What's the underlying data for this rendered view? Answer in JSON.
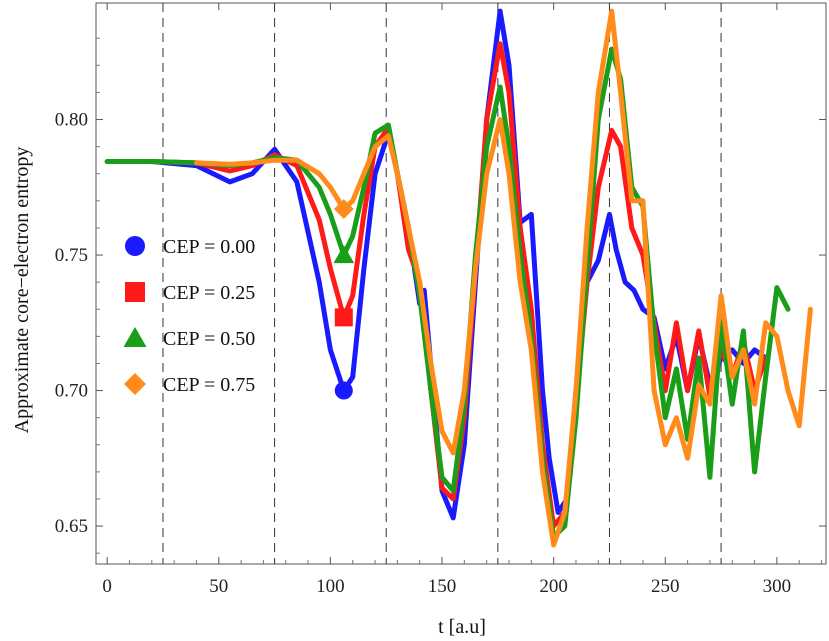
{
  "chart_data": {
    "type": "line",
    "xlabel": "t  [a.u]",
    "ylabel": "Approximate   core−electron   entropy",
    "xlim": [
      -5,
      322
    ],
    "ylim": [
      0.636,
      0.843
    ],
    "x_ticks": [
      0,
      50,
      100,
      150,
      200,
      250,
      300
    ],
    "y_ticks": [
      0.65,
      0.7,
      0.75,
      0.8
    ],
    "y_tick_labels": [
      "0.65",
      "0.70",
      "0.75",
      "0.80"
    ],
    "vlines": [
      25,
      75,
      125,
      175,
      225,
      275
    ],
    "legend_position": "left",
    "series": [
      {
        "name": "CEP = 0.00",
        "color": "#1a1aff",
        "marker": "circle",
        "marker_point": [
          106,
          0.7
        ],
        "x": [
          0,
          20,
          40,
          55,
          65,
          75,
          85,
          95,
          100,
          106,
          110,
          115,
          120,
          126,
          130,
          135,
          140,
          142,
          146,
          150,
          155,
          160,
          165,
          170,
          176,
          180,
          185,
          190,
          195,
          198,
          202,
          206,
          210,
          215,
          220,
          225,
          228,
          232,
          236,
          240,
          245,
          250,
          255,
          260,
          265,
          270,
          275,
          280,
          285,
          290,
          295
        ],
        "y": [
          0.7845,
          0.7845,
          0.783,
          0.777,
          0.78,
          0.789,
          0.777,
          0.74,
          0.715,
          0.7,
          0.705,
          0.745,
          0.78,
          0.795,
          0.78,
          0.76,
          0.732,
          0.737,
          0.7,
          0.663,
          0.653,
          0.68,
          0.74,
          0.8,
          0.84,
          0.82,
          0.762,
          0.765,
          0.7,
          0.675,
          0.655,
          0.66,
          0.7,
          0.74,
          0.748,
          0.765,
          0.752,
          0.74,
          0.737,
          0.73,
          0.727,
          0.708,
          0.72,
          0.7,
          0.72,
          0.702,
          0.712,
          0.715,
          0.71,
          0.715,
          0.712
        ]
      },
      {
        "name": "CEP = 0.25",
        "color": "#ff1a1a",
        "marker": "square",
        "marker_point": [
          106,
          0.727
        ],
        "x": [
          0,
          20,
          40,
          55,
          65,
          75,
          85,
          95,
          100,
          106,
          110,
          115,
          120,
          126,
          130,
          135,
          140,
          145,
          150,
          155,
          160,
          165,
          170,
          176,
          180,
          185,
          190,
          195,
          200,
          205,
          210,
          215,
          220,
          226,
          230,
          235,
          240,
          245,
          250,
          255,
          260,
          265,
          270,
          275,
          280,
          285,
          290,
          295
        ],
        "y": [
          0.7845,
          0.7845,
          0.784,
          0.781,
          0.783,
          0.787,
          0.783,
          0.763,
          0.745,
          0.727,
          0.735,
          0.765,
          0.79,
          0.797,
          0.78,
          0.752,
          0.74,
          0.7,
          0.664,
          0.66,
          0.69,
          0.745,
          0.8,
          0.828,
          0.81,
          0.76,
          0.73,
          0.68,
          0.65,
          0.655,
          0.695,
          0.74,
          0.775,
          0.796,
          0.79,
          0.76,
          0.75,
          0.725,
          0.7,
          0.725,
          0.7,
          0.722,
          0.698,
          0.715,
          0.705,
          0.718,
          0.7,
          0.712
        ]
      },
      {
        "name": "CEP = 0.50",
        "color": "#1a9e1a",
        "marker": "triangle",
        "marker_point": [
          106,
          0.75
        ],
        "x": [
          0,
          20,
          40,
          55,
          65,
          75,
          85,
          95,
          100,
          106,
          110,
          115,
          120,
          126,
          130,
          135,
          140,
          145,
          150,
          155,
          160,
          165,
          170,
          176,
          180,
          185,
          190,
          195,
          200,
          205,
          210,
          215,
          220,
          226,
          230,
          235,
          240,
          245,
          250,
          255,
          260,
          265,
          270,
          275,
          280,
          285,
          290,
          295,
          300,
          305
        ],
        "y": [
          0.7845,
          0.7845,
          0.784,
          0.783,
          0.784,
          0.786,
          0.785,
          0.775,
          0.765,
          0.75,
          0.757,
          0.775,
          0.795,
          0.798,
          0.78,
          0.76,
          0.735,
          0.7,
          0.668,
          0.663,
          0.695,
          0.75,
          0.79,
          0.812,
          0.79,
          0.75,
          0.72,
          0.675,
          0.646,
          0.65,
          0.69,
          0.745,
          0.8,
          0.826,
          0.815,
          0.775,
          0.768,
          0.722,
          0.69,
          0.708,
          0.682,
          0.712,
          0.668,
          0.725,
          0.695,
          0.722,
          0.67,
          0.705,
          0.738,
          0.73
        ]
      },
      {
        "name": "CEP = 0.75",
        "color": "#ff8c1a",
        "marker": "diamond",
        "marker_point": [
          106,
          0.767
        ],
        "x": [
          40,
          55,
          65,
          75,
          85,
          95,
          100,
          106,
          110,
          115,
          120,
          126,
          130,
          135,
          140,
          145,
          150,
          155,
          160,
          165,
          170,
          176,
          180,
          185,
          190,
          195,
          200,
          205,
          210,
          215,
          220,
          226,
          230,
          235,
          240,
          245,
          250,
          255,
          260,
          265,
          270,
          275,
          280,
          285,
          290,
          295,
          300,
          305,
          310,
          315
        ],
        "y": [
          0.784,
          0.7835,
          0.784,
          0.785,
          0.785,
          0.78,
          0.775,
          0.767,
          0.77,
          0.78,
          0.79,
          0.794,
          0.78,
          0.76,
          0.74,
          0.71,
          0.685,
          0.677,
          0.7,
          0.745,
          0.78,
          0.8,
          0.78,
          0.74,
          0.715,
          0.67,
          0.643,
          0.655,
          0.7,
          0.76,
          0.81,
          0.84,
          0.81,
          0.77,
          0.77,
          0.7,
          0.68,
          0.69,
          0.675,
          0.702,
          0.695,
          0.735,
          0.705,
          0.715,
          0.695,
          0.725,
          0.72,
          0.7,
          0.687,
          0.73
        ]
      }
    ]
  }
}
